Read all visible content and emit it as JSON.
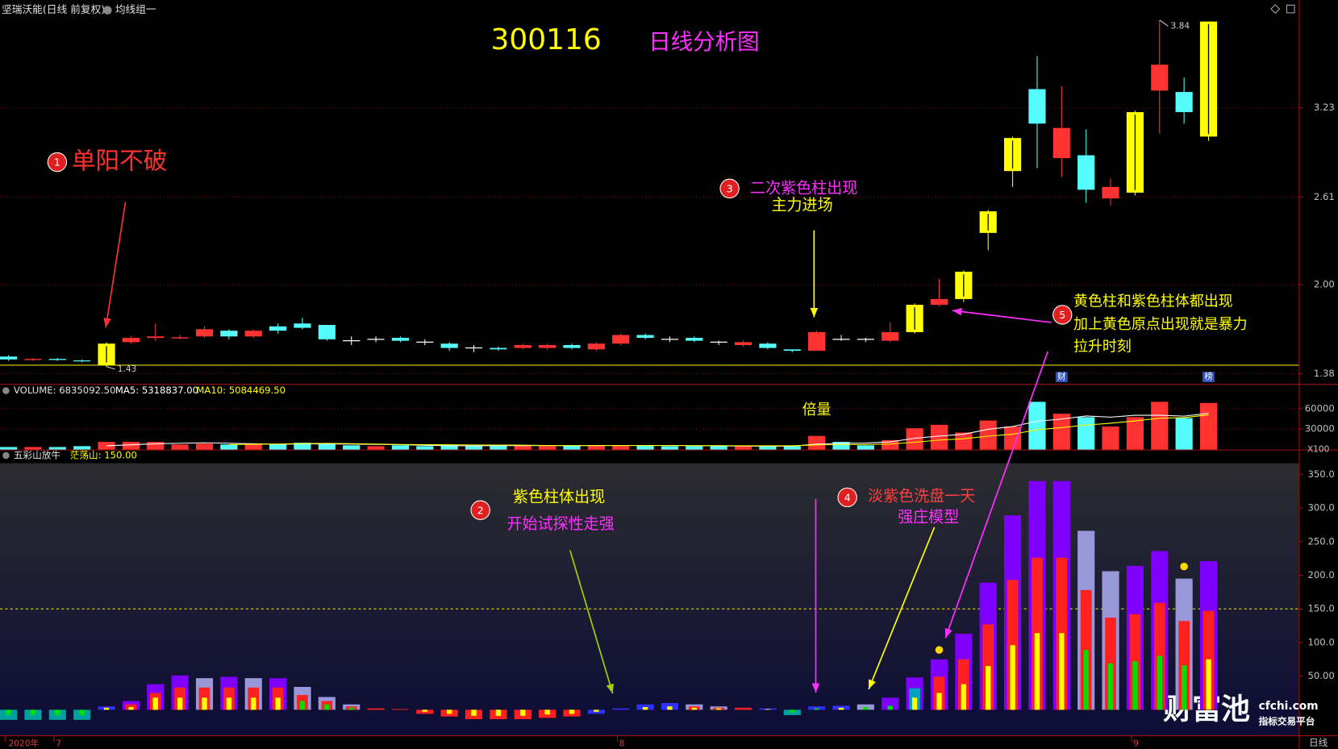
{
  "header": {
    "stock": "坚瑞沃能(日线 前复权)",
    "group": "均线组一"
  },
  "annotations": {
    "title": "300116",
    "subtitle": "日线分析图",
    "volume_note": "倍量",
    "notes": [
      {
        "number": "1",
        "lines": [
          "单阳不破"
        ]
      },
      {
        "number": "2",
        "lines": [
          "紫色柱体出现",
          "开始试探性走强"
        ]
      },
      {
        "number": "3",
        "lines": [
          "二次紫色柱出现",
          "主力进场"
        ]
      },
      {
        "number": "4",
        "lines": [
          "淡紫色洗盘一天",
          "强庄模型"
        ]
      },
      {
        "number": "5",
        "lines": [
          "黄色柱和紫色柱体都出现",
          "加上黄色原点出现就是暴力",
          "拉升时刻"
        ]
      }
    ]
  },
  "footer": {
    "period": "日线"
  },
  "watermark": {
    "brand": "财富池",
    "site": "cfchi.com",
    "slogan": "指标交易平台"
  },
  "chart_data": [
    {
      "type": "candlestick",
      "categories": [
        "2020年",
        null,
        "7",
        null,
        null,
        null,
        null,
        null,
        null,
        null,
        null,
        null,
        null,
        null,
        null,
        null,
        null,
        null,
        null,
        null,
        null,
        null,
        null,
        null,
        null,
        "8",
        null,
        null,
        null,
        null,
        null,
        null,
        null,
        null,
        null,
        null,
        null,
        null,
        null,
        null,
        null,
        null,
        null,
        null,
        null,
        null,
        "9",
        null,
        null,
        null
      ],
      "open": [
        1.5,
        1.48,
        1.48,
        1.47,
        1.44,
        1.6,
        1.63,
        1.63,
        1.64,
        1.68,
        1.64,
        1.71,
        1.73,
        1.72,
        1.61,
        1.62,
        1.63,
        1.6,
        1.59,
        1.56,
        1.56,
        1.56,
        1.56,
        1.58,
        1.55,
        1.59,
        1.65,
        1.62,
        1.63,
        1.6,
        1.58,
        1.59,
        1.55,
        1.54,
        1.62,
        1.62,
        1.61,
        1.67,
        1.86,
        1.9,
        2.36,
        2.79,
        3.36,
        2.88,
        2.9,
        2.6,
        2.64,
        3.35,
        3.34,
        3.03
      ],
      "high": [
        1.51,
        1.49,
        1.49,
        1.48,
        1.6,
        1.64,
        1.73,
        1.65,
        1.71,
        1.69,
        1.69,
        1.73,
        1.77,
        1.72,
        1.64,
        1.64,
        1.64,
        1.62,
        1.6,
        1.58,
        1.57,
        1.59,
        1.59,
        1.59,
        1.6,
        1.66,
        1.66,
        1.64,
        1.64,
        1.61,
        1.61,
        1.6,
        1.55,
        1.68,
        1.65,
        1.63,
        1.74,
        1.87,
        2.04,
        2.1,
        2.52,
        3.03,
        3.59,
        3.38,
        3.08,
        2.74,
        3.21,
        3.84,
        3.44,
        3.83
      ],
      "low": [
        1.47,
        1.47,
        1.47,
        1.46,
        1.43,
        1.59,
        1.61,
        1.62,
        1.63,
        1.62,
        1.63,
        1.66,
        1.69,
        1.61,
        1.58,
        1.6,
        1.6,
        1.58,
        1.54,
        1.53,
        1.54,
        1.55,
        1.55,
        1.55,
        1.54,
        1.58,
        1.62,
        1.6,
        1.6,
        1.58,
        1.57,
        1.55,
        1.53,
        1.54,
        1.61,
        1.6,
        1.6,
        1.66,
        1.85,
        1.88,
        2.24,
        2.68,
        2.81,
        2.75,
        2.57,
        2.55,
        2.62,
        3.05,
        3.12,
        3.0
      ],
      "close": [
        1.48,
        1.485,
        1.475,
        1.465,
        1.59,
        1.63,
        1.64,
        1.635,
        1.69,
        1.64,
        1.68,
        1.68,
        1.7,
        1.62,
        1.61,
        1.62,
        1.61,
        1.6,
        1.56,
        1.56,
        1.55,
        1.58,
        1.58,
        1.56,
        1.59,
        1.65,
        1.63,
        1.62,
        1.61,
        1.6,
        1.6,
        1.56,
        1.54,
        1.67,
        1.62,
        1.62,
        1.67,
        1.86,
        1.9,
        2.09,
        2.51,
        3.02,
        3.12,
        3.09,
        2.66,
        2.68,
        3.2,
        3.53,
        3.2,
        3.83
      ],
      "colors": [
        "#54fcfc",
        "#ff3232",
        "#54fcfc",
        "#54fcfc",
        "#ffff00",
        "#ff3232",
        "#ff3232",
        "#ff3232",
        "#ff3232",
        "#54fcfc",
        "#ff3232",
        "#54fcfc",
        "#54fcfc",
        "#54fcfc",
        "#ffffff",
        "#ffffff",
        "#54fcfc",
        "#ffffff",
        "#54fcfc",
        "#ffffff",
        "#54fcfc",
        "#ff3232",
        "#ff3232",
        "#54fcfc",
        "#ff3232",
        "#ff3232",
        "#54fcfc",
        "#ffffff",
        "#54fcfc",
        "#ffffff",
        "#ff3232",
        "#54fcfc",
        "#54fcfc",
        "#ff3232",
        "#ffffff",
        "#ffffff",
        "#ff3232",
        "#ffff00",
        "#ff3232",
        "#ffff00",
        "#ffff00",
        "#ffff00",
        "#54fcfc",
        "#ff3232",
        "#54fcfc",
        "#ff3232",
        "#ffff00",
        "#ff3232",
        "#54fcfc",
        "#ffff00"
      ],
      "events": [
        null,
        null,
        null,
        null,
        null,
        null,
        null,
        null,
        null,
        null,
        null,
        null,
        null,
        null,
        null,
        null,
        null,
        null,
        null,
        null,
        null,
        null,
        null,
        null,
        null,
        null,
        null,
        null,
        null,
        null,
        null,
        null,
        null,
        null,
        null,
        null,
        null,
        null,
        null,
        null,
        null,
        null,
        null,
        "财",
        null,
        null,
        null,
        null,
        null,
        "榜"
      ],
      "reference_line": 1.44,
      "ylim": [
        1.31,
        3.95
      ],
      "yticks": [
        1.38,
        {
          "value": 2,
          "label": "2.00"
        },
        2.61,
        3.23
      ],
      "grid": true
    },
    {
      "type": "bar",
      "title": "VOLUME: 6835092.50",
      "unit": "X100",
      "values": [
        3750,
        3750,
        3750,
        5000,
        11250,
        11250,
        11250,
        7500,
        8750,
        7500,
        7500,
        7500,
        10000,
        8750,
        6250,
        5000,
        6250,
        5000,
        6250,
        5000,
        6250,
        6250,
        5000,
        6250,
        6250,
        6250,
        6250,
        5000,
        5000,
        5000,
        5000,
        5000,
        5000,
        20000,
        11250,
        6250,
        13750,
        31250,
        36250,
        25000,
        42500,
        33750,
        70000,
        52500,
        47500,
        33750,
        47500,
        70000,
        46250,
        68351
      ],
      "colors": [
        "#54fcfc",
        "#ff3232",
        "#54fcfc",
        "#54fcfc",
        "#ff3232",
        "#ff3232",
        "#ff3232",
        "#ff3232",
        "#ff3232",
        "#54fcfc",
        "#ff3232",
        "#54fcfc",
        "#54fcfc",
        "#54fcfc",
        "#54fcfc",
        "#ff3232",
        "#54fcfc",
        "#54fcfc",
        "#54fcfc",
        "#54fcfc",
        "#54fcfc",
        "#ff3232",
        "#ff3232",
        "#54fcfc",
        "#ff3232",
        "#ff3232",
        "#54fcfc",
        "#54fcfc",
        "#54fcfc",
        "#54fcfc",
        "#ff3232",
        "#54fcfc",
        "#54fcfc",
        "#ff3232",
        "#54fcfc",
        "#54fcfc",
        "#ff3232",
        "#ff3232",
        "#ff3232",
        "#ff3232",
        "#ff3232",
        "#ff3232",
        "#54fcfc",
        "#ff3232",
        "#54fcfc",
        "#ff3232",
        "#ff3232",
        "#ff3232",
        "#54fcfc",
        "#ff3232"
      ],
      "series": [
        {
          "name": "MA5: 5318837.00",
          "color": "#ffffff",
          "values": [
            null,
            null,
            null,
            null,
            5500,
            7000,
            8500,
            9250,
            10000,
            9250,
            8500,
            7750,
            8250,
            8250,
            8000,
            7500,
            7250,
            6250,
            5750,
            5500,
            5750,
            5750,
            5750,
            5750,
            6000,
            6000,
            6000,
            6000,
            5750,
            5500,
            5250,
            5000,
            5000,
            8000,
            9250,
            9500,
            11250,
            16500,
            19750,
            22500,
            29750,
            33750,
            41500,
            44750,
            49250,
            47500,
            50250,
            50250,
            49000,
            53188.37
          ]
        },
        {
          "name": "MA10: 5084469.50",
          "color": "#ffff00",
          "values": [
            null,
            null,
            null,
            null,
            null,
            null,
            null,
            null,
            null,
            7375,
            7750,
            8125,
            8750,
            9125,
            8625,
            8000,
            7500,
            7250,
            7000,
            6750,
            6625,
            6500,
            6000,
            5750,
            5750,
            5875,
            5875,
            5875,
            5750,
            5750,
            5625,
            5500,
            5500,
            6875,
            7375,
            7375,
            8125,
            10750,
            13875,
            15875,
            19625,
            22500,
            29000,
            32250,
            35875,
            38625,
            42000,
            45875,
            46875,
            50844.695
          ]
        }
      ],
      "ylim": [
        0,
        93750
      ],
      "yticks": [
        60000,
        30000
      ],
      "grid": true
    },
    {
      "type": "overlay_bar",
      "title": "五彩山放牛",
      "level": {
        "value": 150,
        "label": "茫荡山: 150.00"
      },
      "series": [
        {
          "values": [
            -15,
            -15,
            -15,
            -15,
            5,
            13,
            38,
            51,
            47,
            49,
            47,
            47,
            34,
            19,
            8,
            2,
            1,
            -6,
            -10,
            -14,
            -14,
            -14,
            -12,
            -10,
            -6,
            2,
            8,
            10,
            8,
            5,
            3,
            2,
            -8,
            5,
            6,
            8,
            18,
            48,
            75,
            113,
            189,
            289,
            340,
            340,
            266,
            206,
            214,
            236,
            195,
            221
          ],
          "colors": [
            "#00a0a0",
            "#00a0a0",
            "#00a0a0",
            "#00a0a0",
            "#3030ff",
            "#8000ff",
            "#8000ff",
            "#8000ff",
            "#9898d8",
            "#8000ff",
            "#9898d8",
            "#8000ff",
            "#9898d8",
            "#9898d8",
            "#9898d8",
            "#ff2020",
            "#ff2020",
            "#ff2020",
            "#ff2020",
            "#ff2020",
            "#ff2020",
            "#ff2020",
            "#ff2020",
            "#ff2020",
            "#3030ff",
            "#3030ff",
            "#3030ff",
            "#3030ff",
            "#9898d8",
            "#9898d8",
            "#ff2020",
            "#3030ff",
            "#00a0a0",
            "#3030ff",
            "#3030ff",
            "#9898d8",
            "#8000ff",
            "#8000ff",
            "#8000ff",
            "#8000ff",
            "#8000ff",
            "#8000ff",
            "#8000ff",
            "#8000ff",
            "#9898d8",
            "#9898d8",
            "#8000ff",
            "#8000ff",
            "#9898d8",
            "#8000ff"
          ]
        },
        {
          "values": [
            null,
            null,
            null,
            null,
            null,
            8,
            25,
            33,
            33,
            33,
            33,
            33,
            22,
            13,
            5,
            null,
            null,
            null,
            null,
            null,
            null,
            null,
            null,
            null,
            null,
            null,
            null,
            null,
            5,
            3,
            null,
            null,
            null,
            null,
            null,
            null,
            null,
            32,
            49,
            75,
            127,
            193,
            226,
            226,
            178,
            137,
            142,
            159,
            132,
            147
          ],
          "colors": [
            null,
            null,
            null,
            null,
            null,
            "#ff2020",
            "#ff2020",
            "#ff2020",
            "#ff2020",
            "#ff2020",
            "#ff2020",
            "#ff2020",
            "#ff2020",
            "#ff2020",
            "#ff2020",
            null,
            null,
            null,
            null,
            null,
            null,
            null,
            null,
            null,
            null,
            null,
            null,
            null,
            "#ff2020",
            "#ff2020",
            null,
            null,
            null,
            null,
            null,
            null,
            null,
            "#00a0c0",
            "#ff2020",
            "#ff2020",
            "#ff2020",
            "#ff2020",
            "#ff2020",
            "#ff2020",
            "#ff2020",
            "#ff2020",
            "#ff2020",
            "#ff2020",
            "#ff2020",
            "#ff2020"
          ]
        },
        {
          "values": [
            -8,
            -8,
            -8,
            -8,
            3,
            4,
            18,
            18,
            18,
            18,
            18,
            18,
            13,
            8,
            3,
            null,
            null,
            -3,
            -6,
            -9,
            -9,
            -9,
            -7,
            -6,
            -3,
            null,
            4,
            5,
            3,
            2,
            null,
            1,
            -4,
            2,
            3,
            4,
            6,
            18,
            25,
            38,
            65,
            96,
            114,
            114,
            89,
            69,
            72,
            80,
            66,
            75
          ],
          "colors": [
            "#00e000",
            "#00e000",
            "#00e000",
            "#00e000",
            "#ffff00",
            "#ffff00",
            "#ffff00",
            "#ffff00",
            "#ffff00",
            "#ffff00",
            "#ffff00",
            "#ffff00",
            "#00e000",
            "#00e000",
            "#00e000",
            null,
            null,
            "#ffff00",
            "#ffff00",
            "#ffff00",
            "#ffff00",
            "#ffff00",
            "#ffff00",
            "#ffff00",
            "#ffff00",
            null,
            "#ffff00",
            "#ffff00",
            "#ffff00",
            "#ffff00",
            null,
            "#ffff00",
            "#00e000",
            "#00e000",
            "#ffff00",
            "#00e000",
            "#00e000",
            "#ffff00",
            "#ffff00",
            "#ffff00",
            "#ffff00",
            "#ffff00",
            "#ffff00",
            "#ffff00",
            "#00e000",
            "#00e000",
            "#00e000",
            "#00e000",
            "#00e000",
            "#ffff00"
          ]
        }
      ],
      "dots": [
        null,
        null,
        null,
        null,
        null,
        null,
        null,
        null,
        null,
        null,
        null,
        null,
        null,
        null,
        null,
        null,
        null,
        null,
        null,
        null,
        null,
        null,
        null,
        null,
        null,
        null,
        null,
        null,
        null,
        null,
        null,
        null,
        null,
        null,
        null,
        null,
        null,
        null,
        89,
        null,
        null,
        null,
        null,
        null,
        null,
        null,
        null,
        null,
        213,
        null
      ],
      "ylim": [
        -38,
        364
      ],
      "yticks": [
        {
          "value": 350,
          "label": "350.0"
        },
        {
          "value": 300,
          "label": "300.0"
        },
        {
          "value": 250,
          "label": "250.0"
        },
        {
          "value": 200,
          "label": "200.0"
        },
        {
          "value": 150,
          "label": "150.0"
        },
        {
          "value": 100,
          "label": "100.0"
        },
        {
          "value": 50,
          "label": "50.00"
        }
      ]
    }
  ]
}
